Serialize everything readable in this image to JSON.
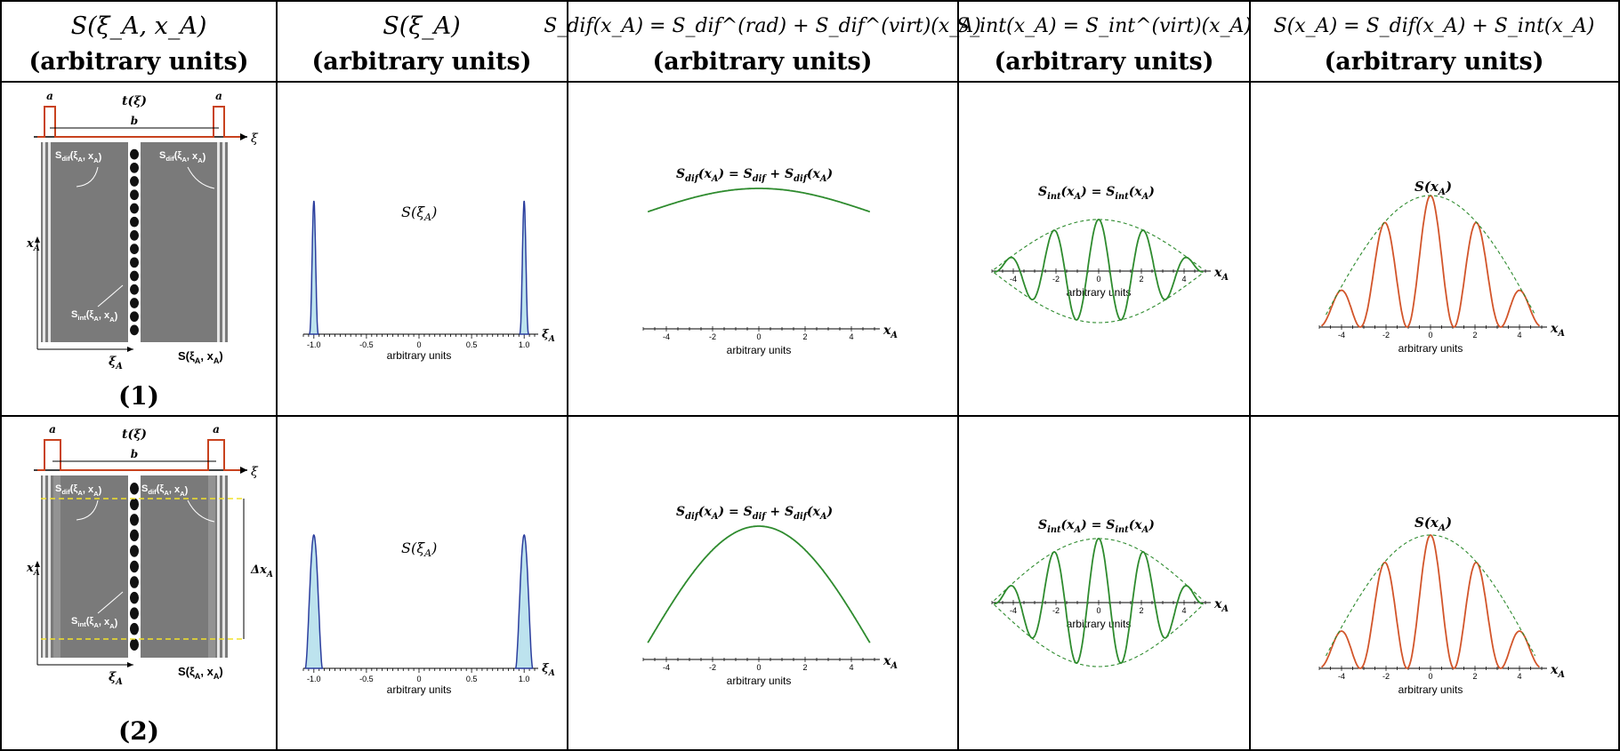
{
  "headers": [
    {
      "main": "S",
      "args": "(ξ_A, x_A)",
      "units": "(arbitrary units)"
    },
    {
      "main": "S",
      "args": "(ξ_A)",
      "units": "(arbitrary units)"
    },
    {
      "formula": "S_dif(x_A) = S_dif^(rad) + S_dif^(virt)(x_A)",
      "units": "(arbitrary units)"
    },
    {
      "formula": "S_int(x_A) = S_int^(virt)(x_A)",
      "units": "(arbitrary units)"
    },
    {
      "formula": "S(x_A) = S_dif(x_A) + S_int(x_A)",
      "units": "(arbitrary units)"
    }
  ],
  "rows": [
    {
      "label": "(1)",
      "variant": "narrow"
    },
    {
      "label": "(2)",
      "variant": "wide"
    }
  ],
  "slit_diagram": {
    "a_label": "a",
    "b_label": "b",
    "t_label": "t(ξ)",
    "xi_label": "ξ",
    "xA_label": "x",
    "xiA_label": "ξ",
    "sdif_label": "S",
    "sint_label": "S",
    "S_label": "S(ξ",
    "delta_label": "Δx"
  },
  "plots": {
    "xi_plot": {
      "title": "S(ξ",
      "ticks": [
        "-1.0",
        "-0.5",
        "0",
        "0.5",
        "1.0"
      ],
      "axis_label": "ξ",
      "units": "arbitrary  units",
      "peak_positions": [
        -1.0,
        1.0
      ]
    },
    "x_plot": {
      "ticks": [
        "-4",
        "-2",
        "0",
        "2",
        "4"
      ],
      "axis_label": "x",
      "units": "arbitrary  units",
      "dif_title": "S",
      "int_title": "S",
      "sum_title": "S(x"
    }
  },
  "colors": {
    "slit": "#c8421e",
    "detector": "#7a7a7a",
    "peak_line": "#2c3e9e",
    "peak_fill": "#bde3ee",
    "dif_curve": "#2e8b2e",
    "int_curve": "#2e8b2e",
    "sum_curve": "#d2552a",
    "envelope": "#2e8b2e",
    "highlight": "#f1e22b"
  }
}
